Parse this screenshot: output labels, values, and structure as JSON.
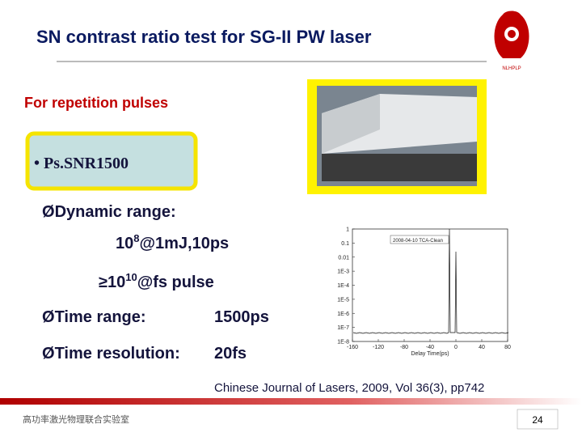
{
  "header": {
    "title": "SN contrast ratio test for SG-II PW laser",
    "logo_text": "NLHPLP"
  },
  "subtitle": "For repetition pulses",
  "device_box": {
    "label": "• Ps.SNR1500"
  },
  "items": [
    {
      "bullet": "Ø",
      "text": "Dynamic range:"
    },
    {
      "base": "10",
      "sup": "8",
      "rest": "@1mJ,10ps"
    },
    {
      "base": "≥10",
      "sup": "10",
      "rest": "@fs pulse"
    },
    {
      "bullet": "Ø",
      "text": "Time range:",
      "value": "1500ps"
    },
    {
      "bullet": "Ø",
      "text": "Time resolution:",
      "value": "20fs"
    }
  ],
  "chart": {
    "type": "line",
    "log_y": true,
    "legend": "2008-04-10 TCA-Clean",
    "x_label": "Delay Time(ps)",
    "xlim": [
      -160,
      80
    ],
    "xticks": [
      -160,
      -120,
      -80,
      -40,
      0,
      40,
      80
    ],
    "ylim": [
      1e-08,
      1
    ],
    "yticks": [
      1,
      0.1,
      0.01,
      {
        "value": 0.001,
        "label": "1E-3"
      },
      {
        "value": 0.0001,
        "label": "1E-4"
      },
      {
        "value": 1e-05,
        "label": "1E-5"
      },
      {
        "value": 1e-06,
        "label": "1E-6"
      },
      {
        "value": 1e-07,
        "label": "1E-7"
      },
      {
        "value": 1e-08,
        "label": "1E-8"
      }
    ]
  },
  "citation": "Chinese Journal of Lasers, 2009, Vol 36(3), pp742",
  "footer": {
    "lab": "高功率激光物理联合实验室",
    "page": "24"
  }
}
